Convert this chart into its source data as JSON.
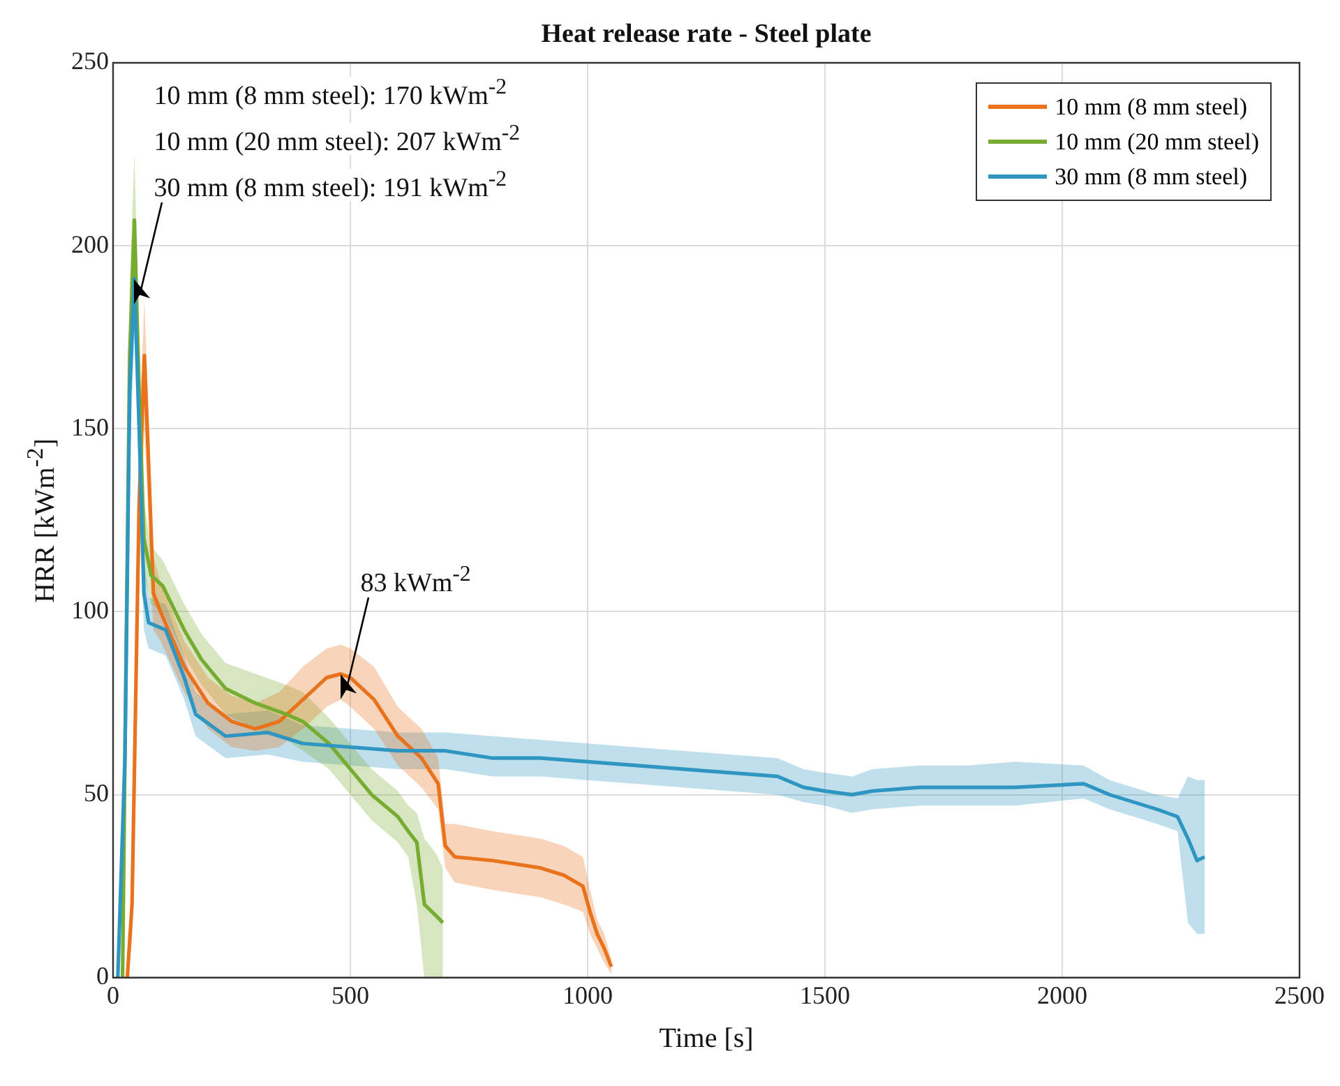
{
  "chart_data": {
    "type": "line",
    "title": "Heat release rate - Steel plate",
    "xlabel": "Time [s]",
    "ylabel": "HRR [kWm$^{-2}$]",
    "xlim": [
      0,
      2500
    ],
    "xticks": [
      0,
      500,
      1000,
      1500,
      2000,
      2500
    ],
    "ylim": [
      0,
      250
    ],
    "yticks": [
      0,
      50,
      100,
      150,
      200,
      250
    ],
    "grid": true,
    "legend": "top right",
    "annotations": [
      "10 mm (8 mm steel): 170 kWm$^{-2}$",
      "10 mm (20 mm steel): 207 kWm$^{-2}$",
      {
        "text": "30 mm (8 mm steel): 191 kWm$^{-2}$",
        "x": 45,
        "y": 191
      },
      {
        "text": "83 kWm$^{-2}$",
        "x": 480,
        "y": 83
      }
    ],
    "series": [
      {
        "name": "10 mm (8 mm steel)",
        "color": "#e8731c",
        "x": [
          30,
          40,
          55,
          66,
          75,
          85,
          100,
          150,
          200,
          250,
          300,
          350,
          400,
          450,
          480,
          500,
          550,
          600,
          650,
          685,
          700,
          720,
          800,
          900,
          950,
          990,
          1005,
          1020,
          1035,
          1050
        ],
        "values": [
          0,
          20,
          130,
          170,
          140,
          105,
          100,
          85,
          75,
          70,
          68,
          70,
          76,
          82,
          83,
          82,
          76,
          66,
          60,
          53,
          36,
          33,
          32,
          30,
          28,
          25,
          18,
          12,
          8,
          3
        ],
        "lower": [
          0,
          10,
          110,
          150,
          125,
          95,
          92,
          78,
          68,
          63,
          62,
          63,
          68,
          74,
          76,
          74,
          68,
          58,
          52,
          46,
          30,
          26,
          24,
          22,
          20,
          18,
          12,
          8,
          4,
          1
        ],
        "upper": [
          0,
          30,
          150,
          185,
          155,
          115,
          108,
          92,
          82,
          77,
          75,
          78,
          85,
          90,
          91,
          90,
          85,
          74,
          68,
          60,
          42,
          42,
          40,
          38,
          36,
          33,
          24,
          16,
          12,
          5
        ]
      },
      {
        "name": "10 mm (20 mm steel)",
        "color": "#77ac30",
        "x": [
          20,
          25,
          35,
          45,
          55,
          65,
          80,
          105,
          150,
          186,
          237,
          300,
          365,
          400,
          455,
          500,
          545,
          600,
          622,
          640,
          656,
          680,
          695
        ],
        "values": [
          0,
          60,
          170,
          207,
          160,
          120,
          110,
          107,
          95,
          87,
          79,
          75,
          72,
          70,
          64,
          57,
          50,
          44,
          40,
          37,
          20,
          17,
          15
        ],
        "lower": [
          0,
          45,
          150,
          190,
          145,
          110,
          102,
          100,
          88,
          80,
          72,
          68,
          65,
          62,
          57,
          50,
          43,
          37,
          33,
          20,
          0,
          0,
          0
        ],
        "upper": [
          0,
          75,
          190,
          225,
          175,
          130,
          118,
          114,
          102,
          94,
          86,
          83,
          80,
          78,
          71,
          64,
          57,
          51,
          47,
          45,
          38,
          34,
          30
        ]
      },
      {
        "name": "30 mm (8 mm steel)",
        "color": "#2e96c0",
        "x": [
          10,
          25,
          35,
          45,
          55,
          65,
          75,
          111,
          150,
          174,
          237,
          326,
          400,
          500,
          600,
          700,
          800,
          900,
          1000,
          1100,
          1200,
          1300,
          1400,
          1455,
          1500,
          1557,
          1600,
          1700,
          1800,
          1900,
          2045,
          2100,
          2150,
          2200,
          2243,
          2265,
          2284,
          2300
        ],
        "values": [
          0,
          60,
          160,
          191,
          150,
          105,
          97,
          95,
          82,
          72,
          66,
          67,
          64,
          63,
          62,
          62,
          60,
          60,
          59,
          58,
          57,
          56,
          55,
          52,
          51,
          50,
          51,
          52,
          52,
          52,
          53,
          50,
          48,
          46,
          44,
          38,
          32,
          33
        ],
        "lower": [
          0,
          45,
          140,
          175,
          135,
          95,
          90,
          88,
          76,
          66,
          60,
          61,
          59,
          58,
          57,
          57,
          55,
          55,
          54,
          53,
          52,
          51,
          50,
          48,
          47,
          45,
          46,
          47,
          47,
          47,
          49,
          46,
          44,
          42,
          40,
          15,
          12,
          12
        ],
        "upper": [
          0,
          75,
          180,
          205,
          165,
          115,
          104,
          102,
          88,
          78,
          72,
          73,
          69,
          68,
          67,
          67,
          66,
          65,
          64,
          63,
          62,
          61,
          60,
          57,
          56,
          55,
          57,
          58,
          58,
          59,
          58,
          54,
          52,
          50,
          49,
          55,
          54,
          54
        ]
      }
    ]
  }
}
